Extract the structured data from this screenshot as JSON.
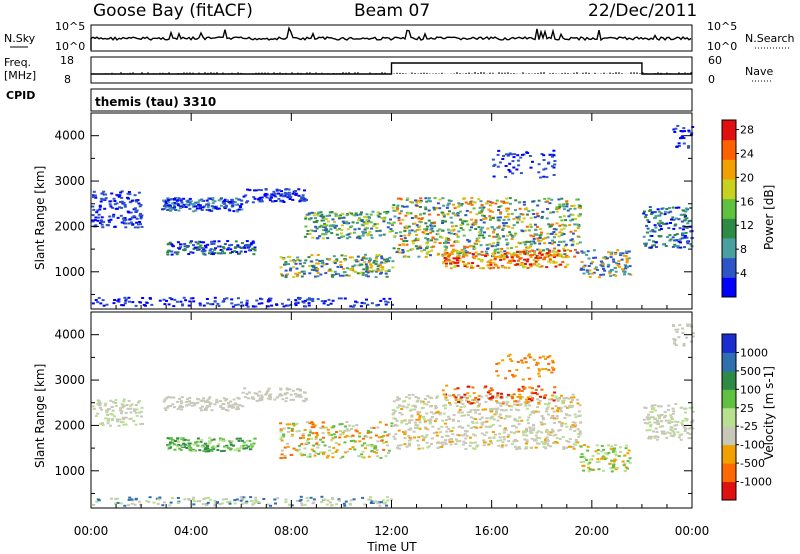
{
  "header": {
    "station": "Goose Bay (fitACF)",
    "beam": "Beam 07",
    "date": "22/Dec/2011"
  },
  "panels": {
    "noise": {
      "left_label": "N.Sky",
      "right_label": "N.Search",
      "left_ticks": [
        "10^5",
        "10^0"
      ],
      "right_ticks": [
        "10^5",
        "10^0"
      ]
    },
    "freq": {
      "left_label_1": "Freq.",
      "left_label_2": "[MHz]",
      "right_label": "Nave",
      "left_ticks": [
        "18",
        "8"
      ],
      "right_ticks": [
        "60",
        "0"
      ]
    },
    "cpid": {
      "label": "CPID",
      "value": "themis (tau) 3310"
    }
  },
  "chart_data": [
    {
      "type": "heatmap",
      "name": "power",
      "ylabel": "Slant Range [km]",
      "yticks": [
        "1000",
        "2000",
        "3000",
        "4000"
      ],
      "colorbar_label": "Power [dB]",
      "colorbar_ticks": [
        "4",
        "8",
        "12",
        "16",
        "20",
        "24",
        "28"
      ],
      "colors": [
        "#0000ff",
        "#2e55c8",
        "#4aa0a0",
        "#2f8a46",
        "#60c040",
        "#c8d020",
        "#f0a000",
        "#ff6000",
        "#e01010"
      ]
    },
    {
      "type": "heatmap",
      "name": "velocity",
      "ylabel": "Slant Range [km]",
      "yticks": [
        "1000",
        "2000",
        "3000",
        "4000"
      ],
      "colorbar_label": "Velocity [m s-1]",
      "colorbar_ticks": [
        "1000",
        "500",
        "100",
        "25",
        "-25",
        "-100",
        "-500",
        "-1000"
      ],
      "colors": [
        "#1a2ed0",
        "#2f6fb0",
        "#2f8a46",
        "#60c040",
        "#b8e090",
        "#c8c8b8",
        "#f0a000",
        "#ff6a00",
        "#e01010"
      ]
    }
  ],
  "xaxis": {
    "label": "Time UT",
    "ticks": [
      "00:00",
      "04:00",
      "08:00",
      "12:00",
      "16:00",
      "20:00",
      "00:00"
    ]
  }
}
